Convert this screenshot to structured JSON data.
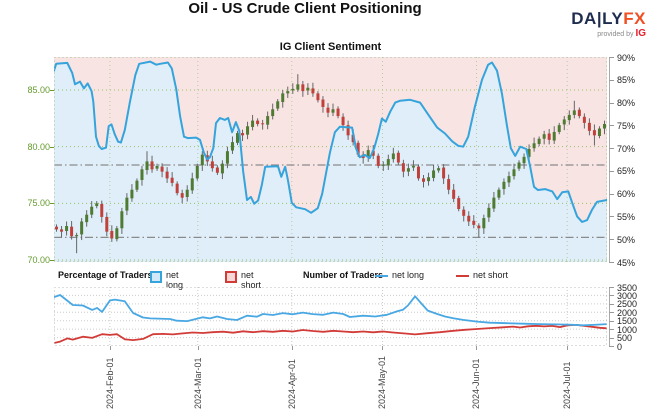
{
  "header": {
    "title": "Oil - US Crude Client Positioning",
    "subtitle": "IG Client Sentiment",
    "logo": {
      "daily": "DA|LY",
      "fx": "FX",
      "tagline": "provided by",
      "provider": "IG"
    }
  },
  "legend": {
    "pct_label": "Percentage of Traders",
    "pct_long": "net long",
    "pct_short": "net short",
    "count_label": "Number of Traders",
    "count_long": "net long",
    "count_short": "net short"
  },
  "axes": {
    "price_ticks": [
      "85.00",
      "80.00",
      "75.00",
      "70.00"
    ],
    "price_values": [
      85,
      80,
      75,
      70
    ],
    "pct_ticks": [
      "90%",
      "85%",
      "80%",
      "75%",
      "70%",
      "65%",
      "60%",
      "55%",
      "50%",
      "45%"
    ],
    "count_ticks": [
      "3500",
      "3000",
      "2500",
      "2000",
      "1500",
      "1000",
      "500",
      "0"
    ],
    "date_ticks": [
      "2024-Feb-01",
      "2024-Mar-01",
      "2024-Apr-01",
      "2024-May-01",
      "2024-Jun-01",
      "2024-Jul-01"
    ],
    "date_fracs": [
      0.101,
      0.26,
      0.43,
      0.594,
      0.764,
      0.928
    ]
  },
  "colors": {
    "sentiment_line": "#35a3dc",
    "area_below": "#dfeef8",
    "area_above": "#f9e4e4",
    "candle_up": "#4f7a32",
    "candle_down": "#c0413b",
    "wick": "#666666",
    "grid_green": "#96c264",
    "grid_vertical": "#b4cba4",
    "grid_gray": "#cccccc",
    "ref_line": "#8a8a8a",
    "count_long": "#49a8e3",
    "count_short": "#d23c38",
    "price_label": "#669b2e",
    "logo_navy": "#1e2d4f",
    "logo_orange": "#f04f23",
    "logo_ig": "#e61e2b"
  },
  "chart_data": [
    {
      "type": "candlestick+line",
      "title": "IG Client Sentiment",
      "price_axis": {
        "min": 69.8,
        "max": 87.9,
        "gridlines": [
          85,
          80,
          75,
          70
        ]
      },
      "pct_axis": {
        "min": 45,
        "max": 90,
        "ref_lines": [
          66.3,
          50.4
        ]
      },
      "candles_first_open": 73.0,
      "candle_closes": [
        72.7,
        72.5,
        73.0,
        72.1,
        72.2,
        73.4,
        74.0,
        74.7,
        75.0,
        73.8,
        72.5,
        71.9,
        72.8,
        74.3,
        75.5,
        76.2,
        77.0,
        78.0,
        78.7,
        78.0,
        78.3,
        77.8,
        77.2,
        76.8,
        75.9,
        75.5,
        76.2,
        77.2,
        78.3,
        79.3,
        78.7,
        78.1,
        77.7,
        78.5,
        79.6,
        80.4,
        81.2,
        81.0,
        81.8,
        82.3,
        82.0,
        82.0,
        82.7,
        83.3,
        84.0,
        84.7,
        84.9,
        85.1,
        85.5,
        84.9,
        85.2,
        84.7,
        84.1,
        83.5,
        83.0,
        83.3,
        82.7,
        81.9,
        81.0,
        80.4,
        79.3,
        79.0,
        79.7,
        79.2,
        78.3,
        78.4,
        78.9,
        79.4,
        78.6,
        77.8,
        78.1,
        78.3,
        77.2,
        76.9,
        77.3,
        77.9,
        78.1,
        77.2,
        76.2,
        75.4,
        74.5,
        73.9,
        73.4,
        73.1,
        72.8,
        73.7,
        74.6,
        75.5,
        76.2,
        76.9,
        77.4,
        78.0,
        78.6,
        79.1,
        79.8,
        80.3,
        80.7,
        81.1,
        80.6,
        81.3,
        81.9,
        82.4,
        82.8,
        83.2,
        82.7,
        82.1,
        81.4,
        81.0,
        81.6,
        82.0
      ],
      "candle_wicks": {
        "4": [
          70.6,
          null
        ],
        "18": [
          null,
          79.6
        ],
        "48": [
          null,
          86.4
        ],
        "84": [
          72.0,
          null
        ],
        "103": [
          null,
          84.05
        ],
        "107": [
          80.1,
          null
        ]
      },
      "sentiment_net_long_pct": [
        [
          0,
          87.0
        ],
        [
          0.004,
          88.5
        ],
        [
          0.024,
          88.7
        ],
        [
          0.033,
          86.5
        ],
        [
          0.038,
          84.0
        ],
        [
          0.047,
          84.6
        ],
        [
          0.054,
          83.1
        ],
        [
          0.061,
          84.2
        ],
        [
          0.068,
          82.5
        ],
        [
          0.071,
          80.2
        ],
        [
          0.076,
          72.5
        ],
        [
          0.081,
          70.5
        ],
        [
          0.086,
          69.8
        ],
        [
          0.094,
          70.1
        ],
        [
          0.099,
          74.8
        ],
        [
          0.104,
          75.2
        ],
        [
          0.11,
          73.0
        ],
        [
          0.116,
          71.4
        ],
        [
          0.121,
          71.2
        ],
        [
          0.128,
          74.0
        ],
        [
          0.137,
          80.0
        ],
        [
          0.147,
          86.0
        ],
        [
          0.154,
          88.5
        ],
        [
          0.174,
          89.0
        ],
        [
          0.185,
          88.3
        ],
        [
          0.192,
          88.5
        ],
        [
          0.206,
          88.8
        ],
        [
          0.213,
          87.5
        ],
        [
          0.221,
          83.0
        ],
        [
          0.228,
          77.0
        ],
        [
          0.235,
          72.5
        ],
        [
          0.242,
          72.2
        ],
        [
          0.257,
          72.3
        ],
        [
          0.264,
          71.8
        ],
        [
          0.271,
          69.0
        ],
        [
          0.277,
          67.5
        ],
        [
          0.282,
          68.0
        ],
        [
          0.288,
          70.0
        ],
        [
          0.293,
          75.5
        ],
        [
          0.3,
          76.6
        ],
        [
          0.309,
          76.2
        ],
        [
          0.315,
          76.6
        ],
        [
          0.322,
          73.5
        ],
        [
          0.329,
          75.7
        ],
        [
          0.335,
          73.8
        ],
        [
          0.342,
          65.0
        ],
        [
          0.349,
          58.6
        ],
        [
          0.356,
          59.3
        ],
        [
          0.362,
          57.8
        ],
        [
          0.369,
          58.5
        ],
        [
          0.376,
          62.0
        ],
        [
          0.382,
          65.9
        ],
        [
          0.405,
          66.0
        ],
        [
          0.411,
          63.7
        ],
        [
          0.418,
          65.9
        ],
        [
          0.423,
          63.0
        ],
        [
          0.43,
          58.0
        ],
        [
          0.438,
          57.0
        ],
        [
          0.454,
          56.6
        ],
        [
          0.465,
          55.8
        ],
        [
          0.477,
          56.8
        ],
        [
          0.485,
          60.0
        ],
        [
          0.499,
          69.0
        ],
        [
          0.508,
          73.5
        ],
        [
          0.517,
          74.7
        ],
        [
          0.539,
          74.5
        ],
        [
          0.546,
          70.0
        ],
        [
          0.553,
          68.0
        ],
        [
          0.562,
          68.5
        ],
        [
          0.571,
          67.8
        ],
        [
          0.579,
          70.0
        ],
        [
          0.586,
          73.0
        ],
        [
          0.593,
          76.5
        ],
        [
          0.6,
          75.8
        ],
        [
          0.608,
          78.0
        ],
        [
          0.617,
          80.0
        ],
        [
          0.626,
          80.4
        ],
        [
          0.644,
          80.6
        ],
        [
          0.662,
          80.0
        ],
        [
          0.676,
          77.5
        ],
        [
          0.693,
          74.5
        ],
        [
          0.707,
          73.2
        ],
        [
          0.72,
          71.5
        ],
        [
          0.731,
          70.5
        ],
        [
          0.74,
          70.3
        ],
        [
          0.749,
          72.5
        ],
        [
          0.761,
          79.0
        ],
        [
          0.774,
          85.0
        ],
        [
          0.785,
          88.3
        ],
        [
          0.792,
          88.8
        ],
        [
          0.801,
          87.0
        ],
        [
          0.81,
          82.0
        ],
        [
          0.819,
          75.0
        ],
        [
          0.826,
          70.0
        ],
        [
          0.834,
          68.3
        ],
        [
          0.843,
          70.3
        ],
        [
          0.854,
          69.8
        ],
        [
          0.861,
          66.0
        ],
        [
          0.868,
          61.5
        ],
        [
          0.875,
          60.8
        ],
        [
          0.888,
          61.0
        ],
        [
          0.901,
          60.5
        ],
        [
          0.91,
          58.8
        ],
        [
          0.919,
          60.3
        ],
        [
          0.93,
          60.5
        ],
        [
          0.937,
          58.0
        ],
        [
          0.946,
          55.0
        ],
        [
          0.955,
          53.8
        ],
        [
          0.964,
          54.2
        ],
        [
          0.973,
          56.5
        ],
        [
          0.982,
          58.2
        ],
        [
          1,
          58.6
        ]
      ]
    },
    {
      "type": "line",
      "count_axis": {
        "min": 0,
        "max": 3500,
        "step": 500
      },
      "net_long_count": [
        [
          0,
          2900
        ],
        [
          0.011,
          3025
        ],
        [
          0.034,
          2430
        ],
        [
          0.052,
          2400
        ],
        [
          0.069,
          2140
        ],
        [
          0.078,
          2260
        ],
        [
          0.087,
          2020
        ],
        [
          0.101,
          2700
        ],
        [
          0.11,
          2750
        ],
        [
          0.128,
          2650
        ],
        [
          0.143,
          1960
        ],
        [
          0.161,
          1690
        ],
        [
          0.174,
          1640
        ],
        [
          0.21,
          1600
        ],
        [
          0.222,
          1500
        ],
        [
          0.241,
          1480
        ],
        [
          0.269,
          1700
        ],
        [
          0.282,
          1640
        ],
        [
          0.295,
          1750
        ],
        [
          0.313,
          1600
        ],
        [
          0.331,
          1540
        ],
        [
          0.349,
          1800
        ],
        [
          0.367,
          1740
        ],
        [
          0.378,
          1900
        ],
        [
          0.396,
          1840
        ],
        [
          0.414,
          1950
        ],
        [
          0.432,
          1880
        ],
        [
          0.45,
          1980
        ],
        [
          0.468,
          1890
        ],
        [
          0.487,
          1850
        ],
        [
          0.505,
          1980
        ],
        [
          0.523,
          1900
        ],
        [
          0.535,
          1720
        ],
        [
          0.559,
          1800
        ],
        [
          0.581,
          1750
        ],
        [
          0.602,
          1850
        ],
        [
          0.62,
          2050
        ],
        [
          0.631,
          2150
        ],
        [
          0.64,
          2400
        ],
        [
          0.653,
          2950
        ],
        [
          0.665,
          2500
        ],
        [
          0.676,
          2100
        ],
        [
          0.693,
          1900
        ],
        [
          0.707,
          1750
        ],
        [
          0.722,
          1650
        ],
        [
          0.74,
          1550
        ],
        [
          0.765,
          1450
        ],
        [
          0.788,
          1380
        ],
        [
          0.819,
          1350
        ],
        [
          0.848,
          1320
        ],
        [
          0.879,
          1300
        ],
        [
          0.91,
          1280
        ],
        [
          0.938,
          1260
        ],
        [
          0.957,
          1230
        ],
        [
          0.975,
          1250
        ],
        [
          1,
          1300
        ]
      ],
      "net_short_count": [
        [
          0,
          180
        ],
        [
          0.011,
          260
        ],
        [
          0.024,
          450
        ],
        [
          0.034,
          380
        ],
        [
          0.052,
          550
        ],
        [
          0.069,
          480
        ],
        [
          0.087,
          700
        ],
        [
          0.101,
          660
        ],
        [
          0.114,
          700
        ],
        [
          0.128,
          400
        ],
        [
          0.143,
          350
        ],
        [
          0.161,
          420
        ],
        [
          0.179,
          700
        ],
        [
          0.197,
          720
        ],
        [
          0.215,
          690
        ],
        [
          0.233,
          750
        ],
        [
          0.251,
          800
        ],
        [
          0.269,
          770
        ],
        [
          0.287,
          820
        ],
        [
          0.306,
          850
        ],
        [
          0.324,
          790
        ],
        [
          0.342,
          870
        ],
        [
          0.36,
          820
        ],
        [
          0.378,
          880
        ],
        [
          0.396,
          840
        ],
        [
          0.414,
          900
        ],
        [
          0.432,
          860
        ],
        [
          0.45,
          950
        ],
        [
          0.468,
          890
        ],
        [
          0.487,
          840
        ],
        [
          0.505,
          900
        ],
        [
          0.523,
          860
        ],
        [
          0.541,
          820
        ],
        [
          0.559,
          860
        ],
        [
          0.577,
          810
        ],
        [
          0.595,
          860
        ],
        [
          0.613,
          800
        ],
        [
          0.635,
          740
        ],
        [
          0.653,
          690
        ],
        [
          0.676,
          760
        ],
        [
          0.698,
          820
        ],
        [
          0.722,
          900
        ],
        [
          0.743,
          960
        ],
        [
          0.765,
          1010
        ],
        [
          0.788,
          1060
        ],
        [
          0.812,
          1110
        ],
        [
          0.83,
          1150
        ],
        [
          0.843,
          1100
        ],
        [
          0.857,
          1170
        ],
        [
          0.872,
          1200
        ],
        [
          0.886,
          1160
        ],
        [
          0.901,
          1190
        ],
        [
          0.915,
          1120
        ],
        [
          0.929,
          1230
        ],
        [
          0.944,
          1250
        ],
        [
          0.958,
          1200
        ],
        [
          0.973,
          1140
        ],
        [
          0.987,
          1080
        ],
        [
          1,
          1050
        ]
      ]
    }
  ]
}
